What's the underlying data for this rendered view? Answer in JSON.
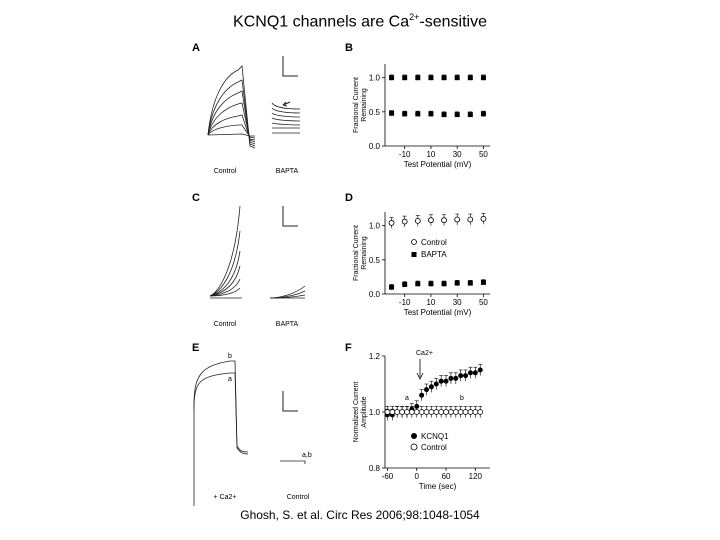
{
  "slide": {
    "title_main": "KCNQ1 channels are Ca",
    "title_sup": "2+",
    "title_tail": "-sensitive",
    "citation": "Ghosh, S. et al. Circ Res 2006;98:1048-1054"
  },
  "panels": {
    "A": {
      "letter": "A",
      "left_label": "Control",
      "right_label": "BAPTA"
    },
    "B": {
      "letter": "B"
    },
    "C": {
      "letter": "C",
      "left_label": "Control",
      "right_label": "BAPTA"
    },
    "D": {
      "letter": "D",
      "legend": [
        "Control",
        "BAPTA"
      ]
    },
    "E": {
      "letter": "E",
      "left_label": "+ Ca2+",
      "right_label": "Control",
      "trace_b": "b",
      "trace_a": "a",
      "trace_ab": "a,b",
      "ca_small": "Ca2+"
    },
    "F": {
      "letter": "F",
      "legend": [
        "KCNQ1",
        "Control"
      ],
      "arrow_label": "Ca2+",
      "mark_a": "a",
      "mark_b": "b"
    }
  },
  "chart_data": [
    {
      "panel": "B",
      "type": "scatter",
      "xlabel": "Test Potential (mV)",
      "ylabel": "Fractional Current Remaining",
      "x_ticks": [
        "-10",
        "10",
        "30",
        "50"
      ],
      "y_ticks": [
        "0.0",
        "0.5",
        "1.0"
      ],
      "xlim": [
        -25,
        55
      ],
      "ylim": [
        0,
        1.2
      ],
      "series": [
        {
          "x": [
            -20,
            -10,
            0,
            10,
            20,
            30,
            40,
            50
          ],
          "y": [
            1.0,
            1.0,
            1.0,
            1.0,
            1.0,
            1.0,
            1.0,
            1.0
          ]
        },
        {
          "x": [
            -20,
            -10,
            0,
            10,
            20,
            30,
            40,
            50
          ],
          "y": [
            0.48,
            0.47,
            0.47,
            0.47,
            0.46,
            0.46,
            0.46,
            0.47
          ]
        }
      ]
    },
    {
      "panel": "D",
      "type": "scatter",
      "xlabel": "Test Potential (mV)",
      "ylabel": "Fractional Current Remaining",
      "x_ticks": [
        "-10",
        "10",
        "30",
        "50"
      ],
      "y_ticks": [
        "0.0",
        "0.5",
        "1.0"
      ],
      "xlim": [
        -25,
        55
      ],
      "ylim": [
        0,
        1.2
      ],
      "series": [
        {
          "name": "Control",
          "x": [
            -20,
            -10,
            0,
            10,
            20,
            30,
            40,
            50
          ],
          "y": [
            1.04,
            1.06,
            1.07,
            1.08,
            1.08,
            1.09,
            1.09,
            1.1
          ]
        },
        {
          "name": "BAPTA",
          "x": [
            -20,
            -10,
            0,
            10,
            20,
            30,
            40,
            50
          ],
          "y": [
            0.1,
            0.14,
            0.15,
            0.15,
            0.15,
            0.16,
            0.16,
            0.17
          ]
        }
      ]
    },
    {
      "panel": "F",
      "type": "scatter",
      "xlabel": "Time (sec)",
      "ylabel": "Normalized Current Amplitude",
      "x_ticks": [
        "-60",
        "0",
        "60",
        "120"
      ],
      "y_ticks": [
        "0.8",
        "1.0",
        "1.2"
      ],
      "xlim": [
        -65,
        150
      ],
      "ylim": [
        0.8,
        1.2
      ],
      "series": [
        {
          "name": "KCNQ1",
          "x": [
            -60,
            -50,
            -40,
            -30,
            -20,
            -10,
            0,
            10,
            20,
            30,
            40,
            50,
            60,
            70,
            80,
            90,
            100,
            110,
            120,
            130
          ],
          "y": [
            0.99,
            0.99,
            1.0,
            1.0,
            1.0,
            1.01,
            1.02,
            1.06,
            1.08,
            1.09,
            1.1,
            1.11,
            1.11,
            1.12,
            1.12,
            1.13,
            1.13,
            1.14,
            1.14,
            1.15
          ]
        },
        {
          "name": "Control",
          "x": [
            -60,
            -50,
            -40,
            -30,
            -20,
            -10,
            0,
            10,
            20,
            30,
            40,
            50,
            60,
            70,
            80,
            90,
            100,
            110,
            120,
            130
          ],
          "y": [
            1.0,
            1.0,
            1.0,
            1.0,
            1.0,
            1.0,
            1.0,
            1.0,
            1.0,
            1.0,
            1.0,
            1.0,
            1.0,
            1.0,
            1.0,
            1.0,
            1.0,
            1.0,
            1.0,
            1.0
          ]
        }
      ]
    }
  ]
}
